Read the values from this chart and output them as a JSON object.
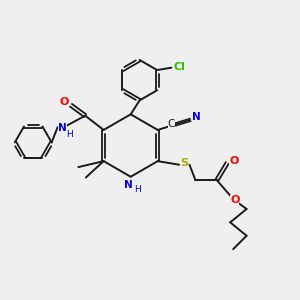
{
  "background_color": "#efefef",
  "bond_color": "#1a1a1a",
  "atom_colors": {
    "N": "#0000dd",
    "O": "#ff0000",
    "S": "#aaaa00",
    "Cl": "#33bb00",
    "NH_amide": "#2255cc"
  },
  "figsize": [
    3.0,
    3.0
  ],
  "dpi": 100,
  "xlim": [
    0,
    10
  ],
  "ylim": [
    0,
    10
  ]
}
